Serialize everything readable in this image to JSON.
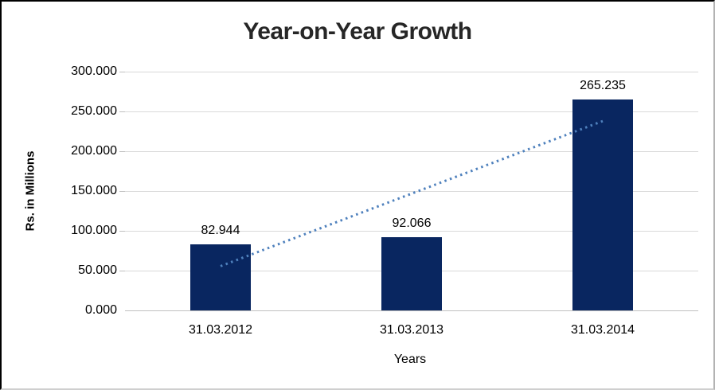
{
  "chart_data": {
    "type": "bar",
    "title": "Year-on-Year Growth",
    "xlabel": "Years",
    "ylabel": "Rs. in Millions",
    "categories": [
      "31.03.2012",
      "31.03.2013",
      "31.03.2014"
    ],
    "values": [
      82.944,
      92.066,
      265.235
    ],
    "data_labels": [
      "82.944",
      "92.066",
      "265.235"
    ],
    "ylim": [
      0,
      300
    ],
    "y_ticks": [
      {
        "value": 0,
        "label": "0.000"
      },
      {
        "value": 50,
        "label": "50.000"
      },
      {
        "value": 100,
        "label": "100.000"
      },
      {
        "value": 150,
        "label": "150.000"
      },
      {
        "value": 200,
        "label": "200.000"
      },
      {
        "value": 250,
        "label": "250.000"
      },
      {
        "value": 300,
        "label": "300.000"
      }
    ],
    "grid": "horizontal",
    "legend_position": "none",
    "colors": {
      "bar": "#092660",
      "trendline": "#4F81BD",
      "gridline": "#D9D9D9",
      "axis_line": "#BFBFBF",
      "title_text": "#262626",
      "tick_text": "#000000"
    },
    "trendline": {
      "type": "linear",
      "style": "dotted",
      "endpoint_values": [
        55.603,
        237.894
      ]
    }
  }
}
